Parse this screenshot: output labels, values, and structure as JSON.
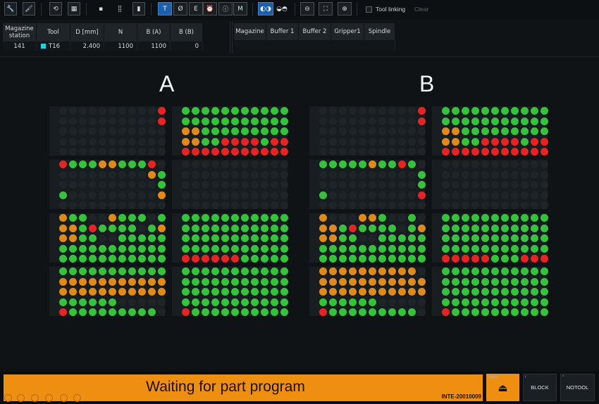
{
  "toolbar": {
    "buttons": [
      {
        "name": "wrench-icon",
        "glyph": "🔧"
      },
      {
        "name": "brush-icon",
        "glyph": "🖌"
      },
      {
        "name": "move-tool-icon",
        "glyph": "⟲"
      },
      {
        "name": "magazine-grid-icon",
        "glyph": "▦"
      },
      {
        "name": "chip-icon",
        "glyph": "▪"
      },
      {
        "name": "keypad-icon",
        "glyph": "⣿"
      },
      {
        "name": "bar-icon",
        "glyph": "▮"
      }
    ],
    "modes": [
      "T",
      "Ø",
      "E",
      "⏰",
      "ⓘ",
      "M"
    ],
    "active_mode": "T",
    "tool_linking_label": "Tool linking",
    "clear_label": "Clear"
  },
  "station_table": {
    "headers": [
      "Magazine station",
      "Tool",
      "D [mm]",
      "N",
      "B (A)",
      "B (B)"
    ],
    "row": {
      "station": "141",
      "tool": "T16",
      "tool_color": "#1fd3e0",
      "d": "2.400",
      "n": "1100",
      "ba": "1100",
      "bb": "0"
    }
  },
  "location_table": {
    "headers": [
      "Magazine",
      "Buffer 1",
      "Buffer 2",
      "Gripper1",
      "Spindle"
    ]
  },
  "magazines": [
    {
      "title": "A"
    },
    {
      "title": "B"
    }
  ],
  "legend_colors": {
    "green": "#36c33c",
    "orange": "#e08a1a",
    "red": "#e82323",
    "empty": "#1e2428"
  },
  "status": {
    "message": "Waiting for part program",
    "code": "INTE-20010009",
    "background": "#ef8f12"
  },
  "function_keys": [
    {
      "key": "Space",
      "label": ""
    },
    {
      "key": "/",
      "label": "BLOCK"
    },
    {
      "key": "*",
      "label": "NOTOOL"
    }
  ]
}
